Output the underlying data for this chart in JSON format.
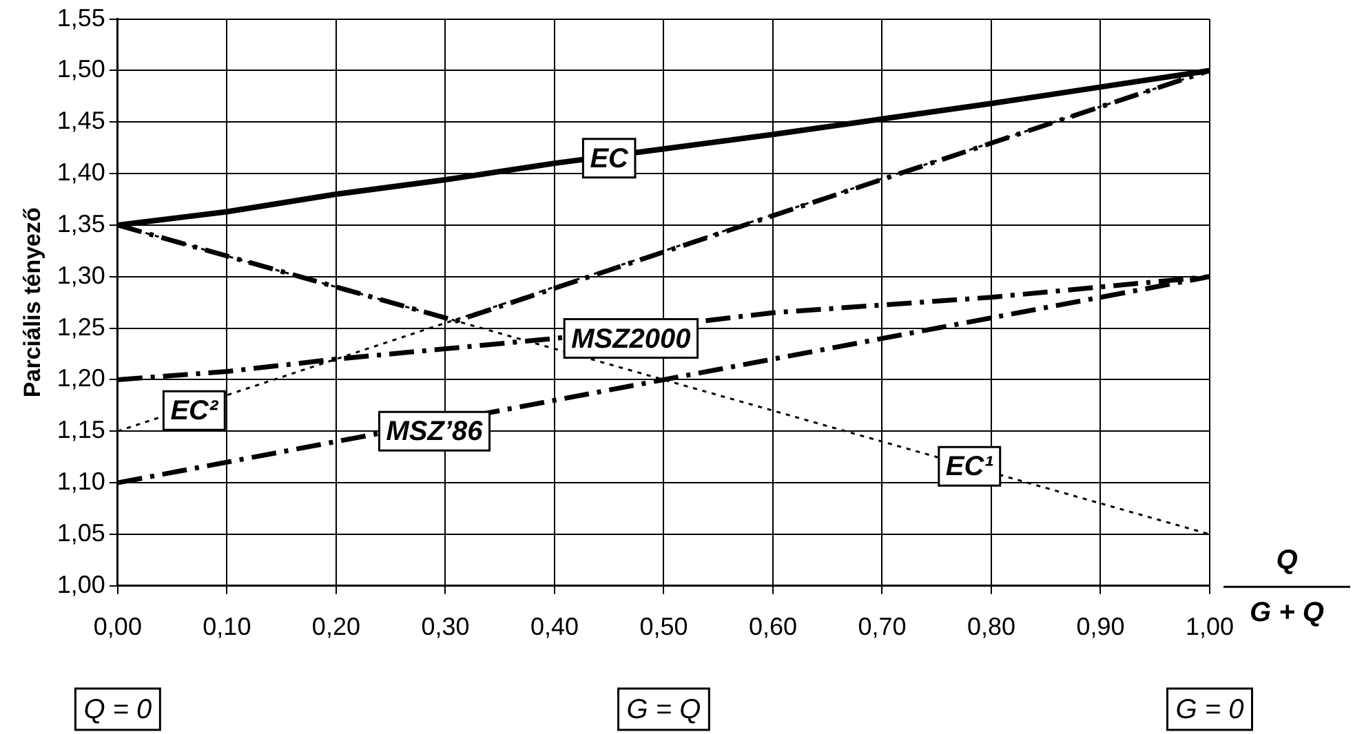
{
  "chart_data": {
    "type": "line",
    "ylabel": "Parciális tényező",
    "xlabel": "Q",
    "xlim": [
      0,
      1
    ],
    "ylim": [
      1,
      1.55
    ],
    "xticks": [
      {
        "value": 0,
        "label": "0,00"
      },
      {
        "value": 0.1,
        "label": "0,10"
      },
      {
        "value": 0.2,
        "label": "0,20"
      },
      {
        "value": 0.3,
        "label": "0,30"
      },
      {
        "value": 0.4,
        "label": "0,40"
      },
      {
        "value": 0.5,
        "label": "0,50"
      },
      {
        "value": 0.6,
        "label": "0,60"
      },
      {
        "value": 0.7,
        "label": "0,70"
      },
      {
        "value": 0.8,
        "label": "0,80"
      },
      {
        "value": 0.9,
        "label": "0,90"
      },
      {
        "value": 1,
        "label": "1,00"
      }
    ],
    "yticks": [
      {
        "value": 1,
        "label": "1,00"
      },
      {
        "value": 1.05,
        "label": "1,05"
      },
      {
        "value": 1.1,
        "label": "1,10"
      },
      {
        "value": 1.15,
        "label": "1,15"
      },
      {
        "value": 1.2,
        "label": "1,20"
      },
      {
        "value": 1.25,
        "label": "1,25"
      },
      {
        "value": 1.3,
        "label": "1,30"
      },
      {
        "value": 1.35,
        "label": "1,35"
      },
      {
        "value": 1.4,
        "label": "1,40"
      },
      {
        "value": 1.45,
        "label": "1,45"
      },
      {
        "value": 1.5,
        "label": "1,50"
      },
      {
        "value": 1.55,
        "label": "1,55"
      }
    ],
    "grid": true,
    "legend": false,
    "marker": "none",
    "series": [
      {
        "color": "#000000",
        "line_style": "dotted",
        "x": [
          0,
          1
        ],
        "values": [
          1.35,
          1.05
        ]
      },
      {
        "color": "#000000",
        "line_style": "dotted",
        "x": [
          0,
          1
        ],
        "values": [
          1.15,
          1.5
        ]
      },
      {
        "color": "#000000",
        "line_style": "dashed",
        "x": [
          0,
          1
        ],
        "values": [
          1.1,
          1.3
        ]
      },
      {
        "color": "#000000",
        "line_style": "dashed",
        "x": [
          0,
          0.1,
          0.2,
          0.3,
          0.4,
          0.6,
          0.8,
          1
        ],
        "values": [
          1.2,
          1.208,
          1.22,
          1.23,
          1.24,
          1.265,
          1.28,
          1.3
        ]
      },
      {
        "color": "#000000",
        "line_style": "dashed",
        "x": [
          0,
          0.31,
          1
        ],
        "values": [
          1.35,
          1.257,
          1.5
        ]
      },
      {
        "color": "#000000",
        "line_style": "solid",
        "x": [
          0,
          0.1,
          0.2,
          0.3,
          0.4,
          0.5,
          0.6,
          0.7,
          0.8,
          0.9,
          1
        ],
        "values": [
          1.35,
          1.363,
          1.38,
          1.394,
          1.41,
          1.424,
          1.438,
          1.453,
          1.468,
          1.484,
          1.5
        ]
      }
    ],
    "annotations": [
      {
        "text": "EC",
        "x": 0.45,
        "y": 1.415
      },
      {
        "text": "MSZ2000",
        "x": 0.47,
        "y": 1.24
      },
      {
        "text": "EC²",
        "x": 0.07,
        "y": 1.17
      },
      {
        "text": "MSZ’86",
        "x": 0.29,
        "y": 1.15
      },
      {
        "text": "EC¹",
        "x": 0.78,
        "y": 1.116
      },
      {
        "text": "G + Q"
      },
      "Q = 0",
      "G = Q",
      "G = 0"
    ]
  }
}
